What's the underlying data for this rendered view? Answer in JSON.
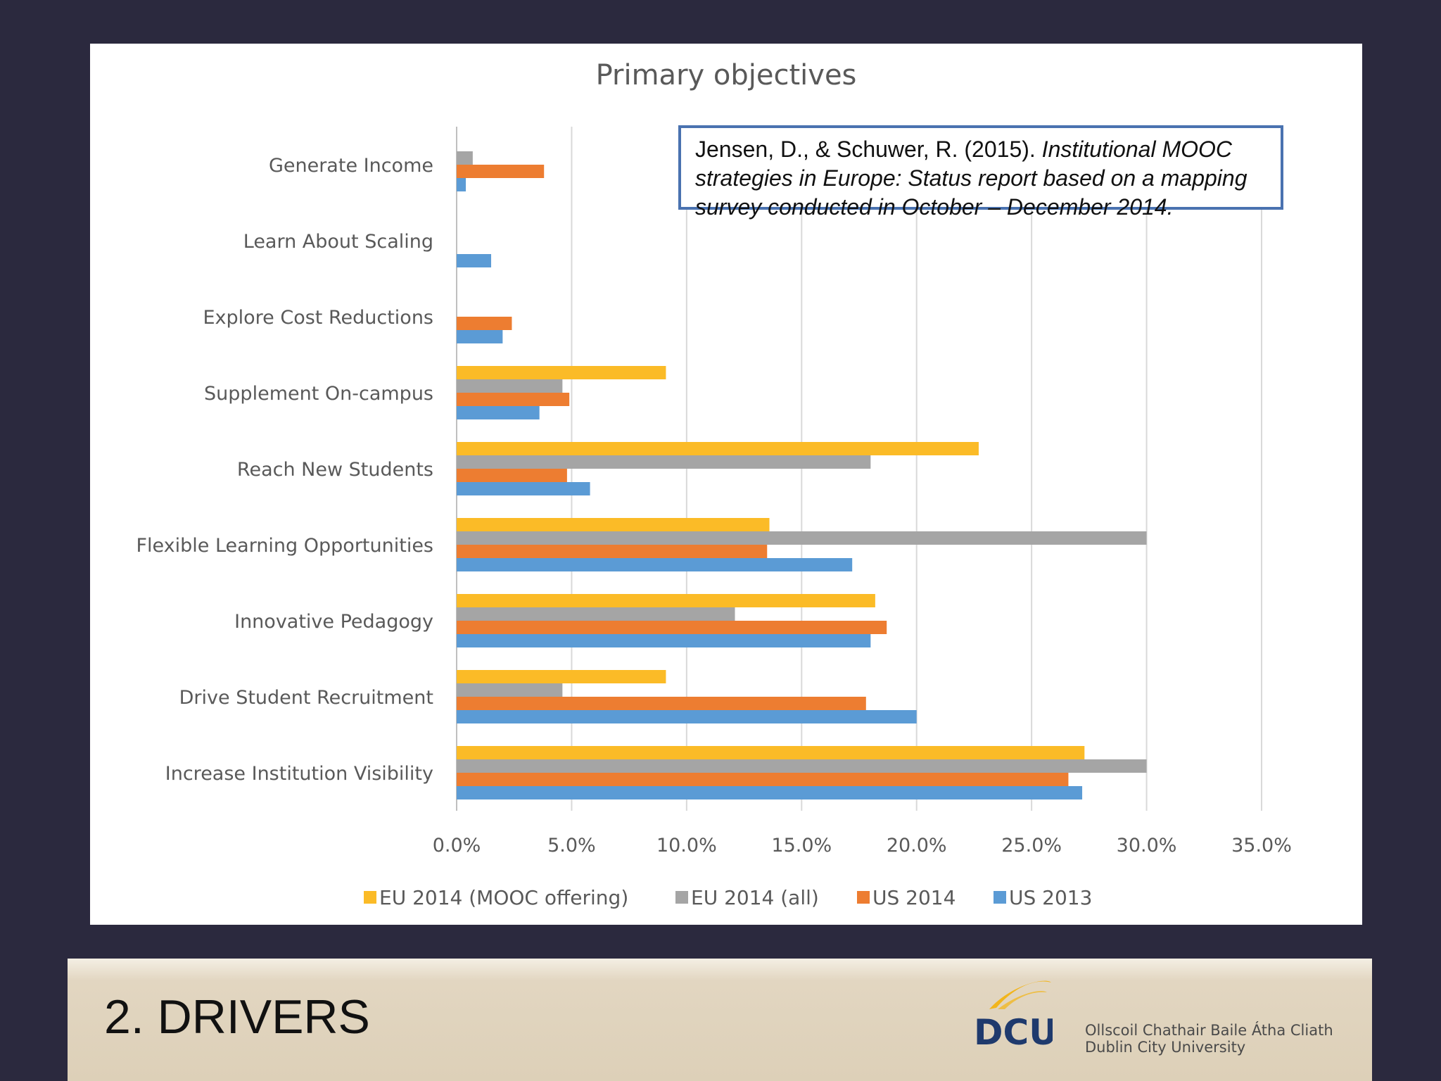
{
  "chart_data": {
    "type": "bar",
    "orientation": "horizontal",
    "title": "Primary objectives",
    "categories": [
      "Generate Income",
      "Learn About Scaling",
      "Explore Cost Reductions",
      "Supplement On-campus",
      "Reach New Students",
      "Flexible Learning Opportunities",
      "Innovative Pedagogy",
      "Drive Student Recruitment",
      "Increase Institution Visibility"
    ],
    "series": [
      {
        "name": "EU 2014 (MOOC offering)",
        "color": "#fbbb27",
        "values": [
          0,
          0,
          0,
          9.1,
          22.7,
          13.6,
          18.2,
          9.1,
          27.3
        ]
      },
      {
        "name": "EU 2014 (all)",
        "color": "#a5a5a5",
        "values": [
          0.7,
          0,
          0,
          4.6,
          18.0,
          30.0,
          12.1,
          4.6,
          30.0
        ]
      },
      {
        "name": "US 2014",
        "color": "#ed7d31",
        "values": [
          3.8,
          0,
          2.4,
          4.9,
          4.8,
          13.5,
          18.7,
          17.8,
          26.6
        ]
      },
      {
        "name": "US 2013",
        "color": "#5b9bd5",
        "values": [
          0.4,
          1.5,
          2.0,
          3.6,
          5.8,
          17.2,
          18.0,
          20.0,
          27.2
        ]
      }
    ],
    "xlim": [
      0,
      35
    ],
    "x_ticks": [
      "0.0%",
      "5.0%",
      "10.0%",
      "15.0%",
      "20.0%",
      "25.0%",
      "30.0%",
      "35.0%"
    ],
    "grid": true,
    "legend": "bottom"
  },
  "citation": {
    "plain": "Jensen, D., & Schuwer, R. (2015). ",
    "italic": "Institutional MOOC strategies in Europe: Status report based on a mapping survey conducted in October – December 2014."
  },
  "footer": {
    "slide_title": "2. DRIVERS",
    "logo_text": "DCU",
    "logo_sub_line1": "Ollscoil Chathair Baile Átha Cliath",
    "logo_sub_line2": "Dublin City University",
    "logo_color": "#1f3a6d",
    "logo_swoosh_color": "#f2b51c"
  }
}
